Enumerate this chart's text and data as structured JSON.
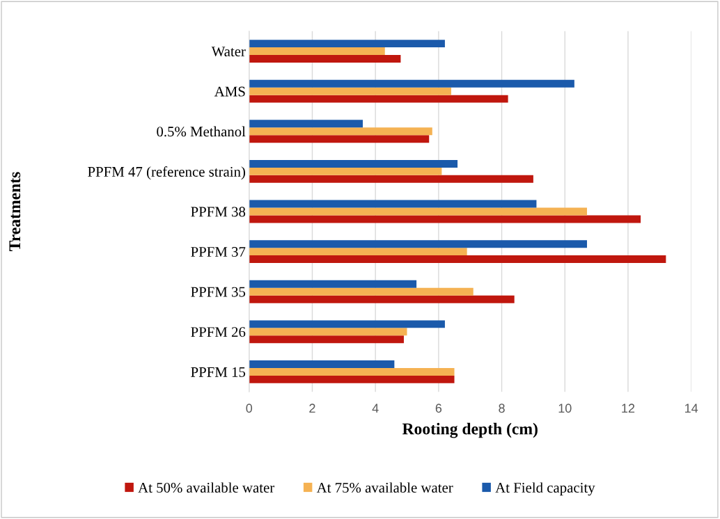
{
  "chart_data": {
    "type": "bar",
    "orientation": "horizontal",
    "xlabel": "Rooting depth (cm)",
    "ylabel": "Treatments",
    "categories": [
      "Water",
      "AMS",
      "0.5% Methanol",
      "PPFM 47 (reference strain)",
      "PPFM 38",
      "PPFM 37",
      "PPFM 35",
      "PPFM 26",
      "PPFM 15"
    ],
    "series": [
      {
        "name": "At 50% available water",
        "color": "#c0170e",
        "values": [
          4.8,
          8.2,
          5.7,
          9.0,
          12.4,
          13.2,
          8.4,
          4.9,
          6.5
        ]
      },
      {
        "name": "At 75% available water",
        "color": "#f5b253",
        "values": [
          4.3,
          6.4,
          5.8,
          6.1,
          10.7,
          6.9,
          7.1,
          5.0,
          6.5
        ]
      },
      {
        "name": "At Field capacity",
        "color": "#1b5aab",
        "values": [
          6.2,
          10.3,
          3.6,
          6.6,
          9.1,
          10.7,
          5.3,
          6.2,
          4.6
        ]
      }
    ],
    "xlim": [
      0,
      14
    ],
    "xticks": [
      0,
      2,
      4,
      6,
      8,
      10,
      12,
      14
    ],
    "grid": "x",
    "legend": "bottom"
  }
}
